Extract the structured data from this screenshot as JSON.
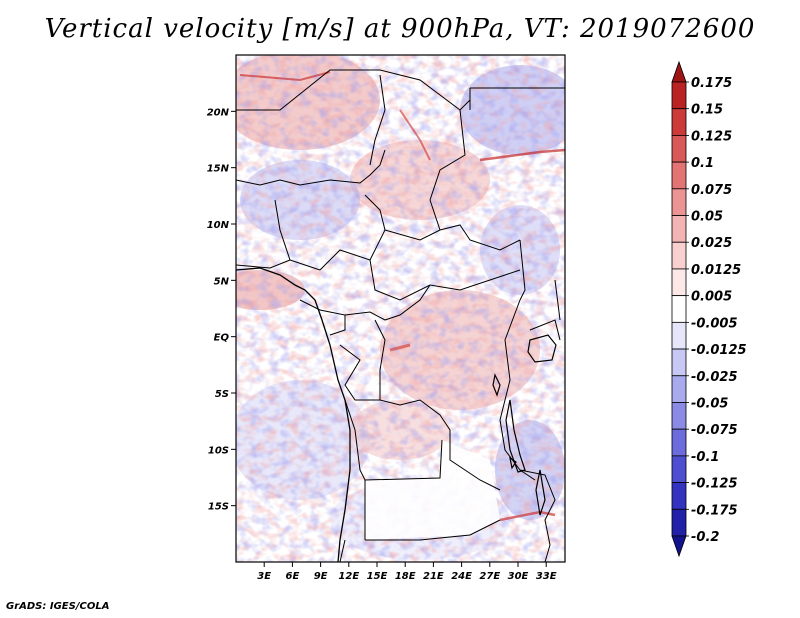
{
  "title": "Vertical velocity [m/s] at 900hPa, VT: 2019072600",
  "footer": "GrADS: IGES/COLA",
  "map": {
    "lon_range": [
      0,
      35
    ],
    "lat_range": [
      -20,
      25
    ],
    "x_ticks": [
      "3E",
      "6E",
      "9E",
      "12E",
      "15E",
      "18E",
      "21E",
      "24E",
      "27E",
      "30E",
      "33E"
    ],
    "x_tick_values": [
      3,
      6,
      9,
      12,
      15,
      18,
      21,
      24,
      27,
      30,
      33
    ],
    "y_ticks": [
      "20N",
      "15N",
      "10N",
      "5N",
      "EQ",
      "5S",
      "10S",
      "15S"
    ],
    "y_tick_values": [
      20,
      15,
      10,
      5,
      0,
      -5,
      -10,
      -15
    ]
  },
  "colorbar": {
    "labels": [
      "0.175",
      "0.15",
      "0.125",
      "0.1",
      "0.075",
      "0.05",
      "0.025",
      "0.0125",
      "0.005",
      "-0.005",
      "-0.0125",
      "-0.025",
      "-0.05",
      "-0.075",
      "-0.1",
      "-0.125",
      "-0.175",
      "-0.2"
    ],
    "colors": [
      "#9e1414",
      "#b92323",
      "#cc3a3a",
      "#d95858",
      "#e37474",
      "#ec9393",
      "#f4b4b4",
      "#f9d0d0",
      "#fde8e8",
      "#ffffff",
      "#e6e6fb",
      "#c8c8f5",
      "#a9a9ee",
      "#8b8be6",
      "#6c6cdc",
      "#4e4ed0",
      "#3333bf",
      "#2020a8",
      "#12128f"
    ]
  },
  "colors": {
    "positive": "#e05555",
    "negative": "#5555dd",
    "border": "#000000"
  }
}
